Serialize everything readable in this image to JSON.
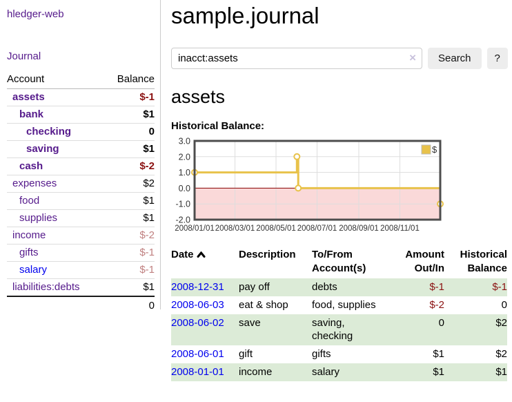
{
  "app": {
    "title": "hledger-web",
    "nav_journal": "Journal"
  },
  "sidebar": {
    "table_headers": {
      "account": "Account",
      "balance": "Balance"
    },
    "accounts": [
      {
        "label": "assets",
        "balance": "$-1",
        "indent": 1,
        "bold": true,
        "balance_style": "neg-strong",
        "link_style": "purple"
      },
      {
        "label": "bank",
        "balance": "$1",
        "indent": 2,
        "bold": true,
        "balance_style": "normal",
        "link_style": "purple"
      },
      {
        "label": "checking",
        "balance": "0",
        "indent": 3,
        "bold": true,
        "balance_style": "normal",
        "link_style": "purple"
      },
      {
        "label": "saving",
        "balance": "$1",
        "indent": 3,
        "bold": true,
        "balance_style": "normal",
        "link_style": "purple"
      },
      {
        "label": "cash",
        "balance": "$-2",
        "indent": 2,
        "bold": true,
        "balance_style": "neg-strong",
        "link_style": "purple"
      },
      {
        "label": "expenses",
        "balance": "$2",
        "indent": 1,
        "bold": false,
        "balance_style": "normal",
        "link_style": "purple"
      },
      {
        "label": "food",
        "balance": "$1",
        "indent": 2,
        "bold": false,
        "balance_style": "normal",
        "link_style": "purple"
      },
      {
        "label": "supplies",
        "balance": "$1",
        "indent": 2,
        "bold": false,
        "balance_style": "normal",
        "link_style": "purple"
      },
      {
        "label": "income",
        "balance": "$-2",
        "indent": 1,
        "bold": false,
        "balance_style": "neg-faded",
        "link_style": "purple"
      },
      {
        "label": "gifts",
        "balance": "$-1",
        "indent": 2,
        "bold": false,
        "balance_style": "neg-faded",
        "link_style": "purple"
      },
      {
        "label": "salary",
        "balance": "$-1",
        "indent": 2,
        "bold": false,
        "balance_style": "neg-faded",
        "link_style": "blue"
      },
      {
        "label": "liabilities:debts",
        "balance": "$1",
        "indent": 1,
        "bold": false,
        "balance_style": "normal",
        "link_style": "purple"
      }
    ],
    "total": "0"
  },
  "header": {
    "title": "sample.journal"
  },
  "search": {
    "value": "inacct:assets",
    "clear_icon": "×",
    "button_label": "Search",
    "help_label": "?"
  },
  "register": {
    "heading": "assets",
    "chart_label": "Historical Balance:"
  },
  "chart_data": {
    "type": "line",
    "step": true,
    "title": "Historical Balance",
    "series": [
      {
        "name": "$",
        "points": [
          [
            "2008-01-01",
            1
          ],
          [
            "2008-06-01",
            2
          ],
          [
            "2008-06-03",
            0
          ],
          [
            "2008-12-31",
            -1
          ]
        ]
      }
    ],
    "x_range": [
      "2008-01-01",
      "2008-12-31"
    ],
    "x_ticks": [
      "2008/01/01",
      "2008/03/01",
      "2008/05/01",
      "2008/07/01",
      "2008/09/01",
      "2008/11/01"
    ],
    "y_ticks": [
      3.0,
      2.0,
      1.0,
      0.0,
      -1.0,
      -2.0
    ],
    "ylim": [
      -2.0,
      3.0
    ],
    "grid": true,
    "legend": "$",
    "legend_position": "top-right",
    "line_color": "#e8c24a",
    "marker_fill": "#ffffff",
    "negative_region_color": "#fad9d9",
    "zero_line_color": "#8b0000",
    "border_color": "#4d4d4d",
    "grid_color": "#dddddd"
  },
  "table": {
    "headers": {
      "date": "Date",
      "sort_icon": "chevron-up",
      "description": "Description",
      "account": "To/From Account(s)",
      "amount": "Amount Out/In",
      "balance": "Historical Balance"
    },
    "rows": [
      {
        "date": "2008-12-31",
        "description": "pay off",
        "accounts": "debts",
        "amount": "$-1",
        "amount_negative": true,
        "balance": "$-1",
        "balance_negative": true
      },
      {
        "date": "2008-06-03",
        "description": "eat & shop",
        "accounts": "food, supplies",
        "amount": "$-2",
        "amount_negative": true,
        "balance": "0",
        "balance_negative": false
      },
      {
        "date": "2008-06-02",
        "description": "save",
        "accounts": "saving, checking",
        "amount": "0",
        "amount_negative": false,
        "balance": "$2",
        "balance_negative": false
      },
      {
        "date": "2008-06-01",
        "description": "gift",
        "accounts": "gifts",
        "amount": "$1",
        "amount_negative": false,
        "balance": "$2",
        "balance_negative": false
      },
      {
        "date": "2008-01-01",
        "description": "income",
        "accounts": "salary",
        "amount": "$1",
        "amount_negative": false,
        "balance": "$1",
        "balance_negative": false
      }
    ]
  },
  "colors": {
    "link_purple": "#551a8b",
    "link_blue": "#0000ee",
    "negative_strong": "#8b1212",
    "negative_faded": "#c08080",
    "row_green": "#dcebd7",
    "chart_gold": "#e8c24a",
    "chart_pink": "#fad9d9"
  }
}
